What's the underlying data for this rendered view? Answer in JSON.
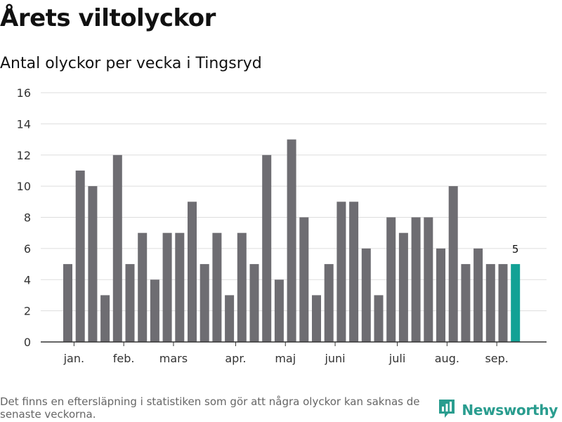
{
  "title": "Årets viltolyckor",
  "subtitle": "Antal olyckor per vecka i Tingsryd",
  "footnote": "Det finns en eftersläpning i statistiken som gör att några olyckor kan saknas de senaste veckorna.",
  "brand": {
    "name": "Newsworthy",
    "logo_icon": "bar-chart-logo-icon"
  },
  "colors": {
    "bar": "#6e6d72",
    "highlight": "#12a195",
    "grid": "#dddddd",
    "axis": "#333333",
    "brand": "#2a9d8f"
  },
  "chart_data": {
    "type": "bar",
    "title": "Årets viltolyckor",
    "subtitle": "Antal olyckor per vecka i Tingsryd",
    "xlabel": "",
    "ylabel": "",
    "ylim": [
      0,
      16
    ],
    "yticks": [
      0,
      2,
      4,
      6,
      8,
      10,
      12,
      14,
      16
    ],
    "grid": true,
    "legend": "none",
    "values": [
      5,
      11,
      10,
      3,
      12,
      5,
      7,
      4,
      7,
      7,
      9,
      5,
      7,
      3,
      7,
      5,
      12,
      4,
      13,
      8,
      3,
      5,
      9,
      9,
      6,
      3,
      8,
      7,
      8,
      8,
      6,
      10,
      5,
      6,
      5,
      5,
      5
    ],
    "month_labels": [
      {
        "label": "jan.",
        "week_index": 0.5
      },
      {
        "label": "feb.",
        "week_index": 4.5
      },
      {
        "label": "mars",
        "week_index": 8.5
      },
      {
        "label": "apr.",
        "week_index": 13.5
      },
      {
        "label": "maj",
        "week_index": 17.5
      },
      {
        "label": "juni",
        "week_index": 21.5
      },
      {
        "label": "juli",
        "week_index": 26.5
      },
      {
        "label": "aug.",
        "week_index": 30.5
      },
      {
        "label": "sep.",
        "week_index": 34.5
      }
    ],
    "highlight_last": true,
    "last_value_label": "5"
  }
}
